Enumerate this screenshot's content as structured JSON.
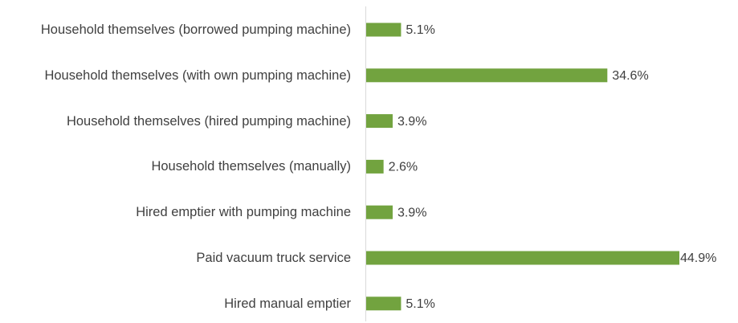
{
  "chart_data": {
    "type": "bar",
    "orientation": "horizontal",
    "categories": [
      "Household themselves (borrowed pumping machine)",
      "Household themselves (with own pumping machine)",
      "Household themselves (hired pumping machine)",
      "Household themselves (manually)",
      "Hired emptier with pumping machine",
      "Paid vacuum truck service",
      "Hired manual emptier"
    ],
    "values": [
      5.1,
      34.6,
      3.9,
      2.6,
      3.9,
      44.9,
      5.1
    ],
    "value_labels": [
      "5.1%",
      "34.6%",
      "3.9%",
      "2.6%",
      "3.9%",
      "44.9%",
      "5.1%"
    ],
    "color": "#72a33f"
  }
}
